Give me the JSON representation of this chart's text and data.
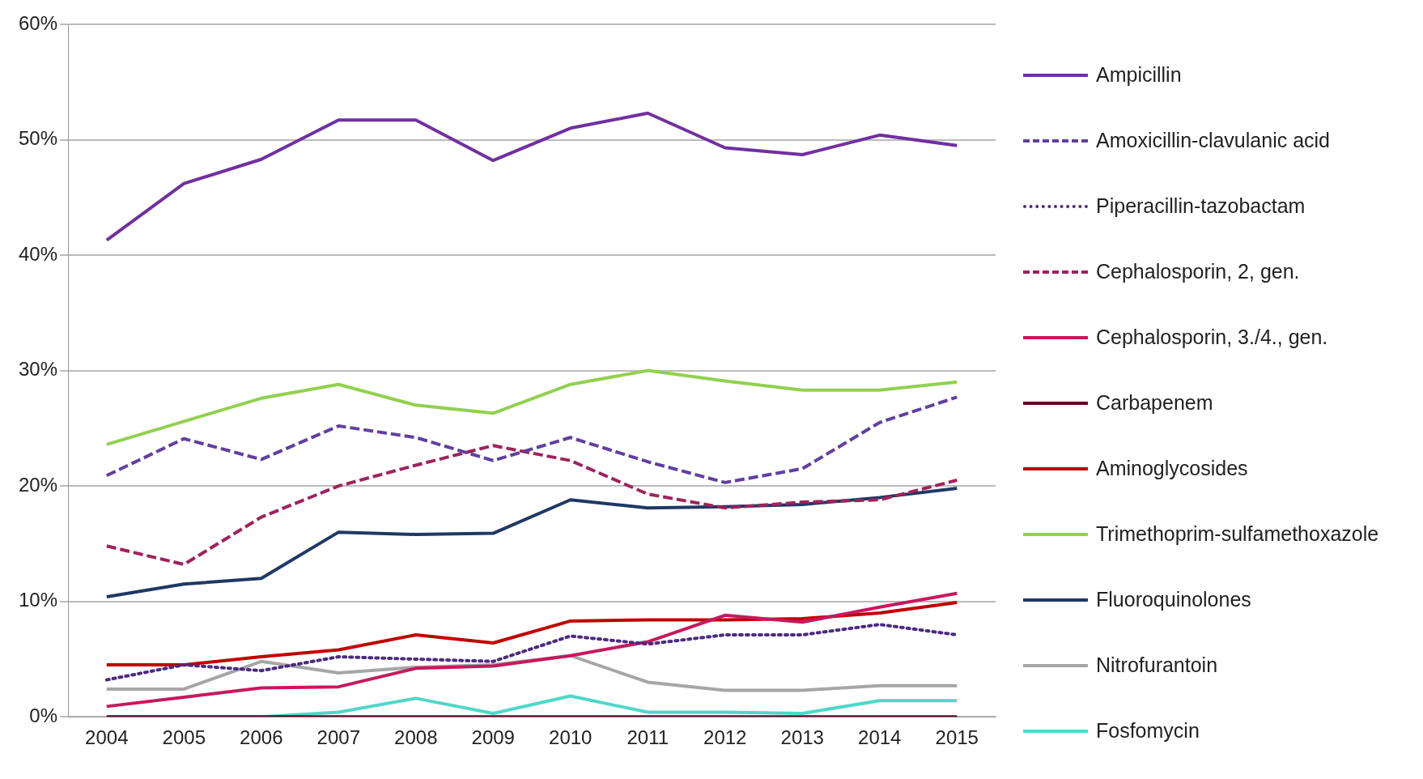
{
  "chart_data": {
    "type": "line",
    "categories": [
      "2004",
      "2005",
      "2006",
      "2007",
      "2008",
      "2009",
      "2010",
      "2011",
      "2012",
      "2013",
      "2014",
      "2015"
    ],
    "ylim": [
      0,
      60
    ],
    "yticks": [
      {
        "value": 0,
        "label": "0%"
      },
      {
        "value": 10,
        "label": "10%"
      },
      {
        "value": 20,
        "label": "20%"
      },
      {
        "value": 30,
        "label": "30%"
      },
      {
        "value": 40,
        "label": "40%"
      },
      {
        "value": 50,
        "label": "50%"
      },
      {
        "value": 60,
        "label": "60%"
      }
    ],
    "grid": "y",
    "legend": "right",
    "marker": "none",
    "series": [
      {
        "name": "Ampicillin",
        "color": "#7030a0",
        "values": [
          41.3,
          46.2,
          48.3,
          51.7,
          51.7,
          48.2,
          51,
          52.3,
          49.3,
          48.7,
          50.4,
          49.5
        ]
      },
      {
        "name": "Amoxicillin-clavulanic acid",
        "color": "#6040a0",
        "line_style": "dashed",
        "values": [
          20.9,
          24.1,
          22.3,
          25.2,
          24.2,
          22.2,
          24.2,
          22.1,
          20.3,
          21.5,
          25.5,
          27.7
        ]
      },
      {
        "name": "Piperacillin-tazobactam",
        "color": "#4b2a80",
        "line_style": "dotted",
        "values": [
          3.2,
          4.5,
          4.0,
          5.2,
          5.0,
          4.8,
          7.0,
          6.3,
          7.1,
          7.1,
          8.0,
          7.1
        ]
      },
      {
        "name": "Cephalosporin, 2, gen.",
        "color": "#a0225a",
        "line_style": "dashed",
        "values": [
          14.8,
          13.2,
          17.3,
          20.0,
          21.8,
          23.5,
          22.2,
          19.3,
          18.1,
          18.6,
          18.8,
          20.5
        ]
      },
      {
        "name": "Cephalosporin, 3./4., gen.",
        "color": "#c8185e",
        "values": [
          0.9,
          1.7,
          2.5,
          2.6,
          4.2,
          4.4,
          5.3,
          6.5,
          8.8,
          8.2,
          9.5,
          10.7
        ]
      },
      {
        "name": "Carbapenem",
        "color": "#5a0a28",
        "values": [
          0,
          0,
          0,
          0,
          0,
          0,
          0,
          0,
          0,
          0,
          0,
          0
        ]
      },
      {
        "name": "Aminoglycosides",
        "color": "#c00000",
        "values": [
          4.5,
          4.5,
          5.2,
          5.8,
          7.1,
          6.4,
          8.3,
          8.4,
          8.4,
          8.5,
          9.0,
          9.9
        ]
      },
      {
        "name": "Trimethoprim-sulfamethoxazole",
        "color": "#92d050",
        "values": [
          23.6,
          25.6,
          27.6,
          28.8,
          27.0,
          26.3,
          28.8,
          30.0,
          29.1,
          28.3,
          28.3,
          29.0
        ]
      },
      {
        "name": "Fluoroquinolones",
        "color": "#1f3864",
        "values": [
          10.4,
          11.5,
          12.0,
          16.0,
          15.8,
          15.9,
          18.8,
          18.1,
          18.2,
          18.4,
          19.0,
          19.8
        ]
      },
      {
        "name": "Nitrofurantoin",
        "color": "#a6a6a6",
        "values": [
          2.4,
          2.4,
          4.8,
          3.8,
          4.3,
          4.5,
          5.3,
          3.0,
          2.3,
          2.3,
          2.7,
          2.7
        ]
      },
      {
        "name": "Fosfomycin",
        "color": "#4fd8c8",
        "values": [
          0,
          0,
          0,
          0.4,
          1.6,
          0.3,
          1.8,
          0.4,
          0.4,
          0.3,
          1.4,
          1.4
        ]
      }
    ]
  }
}
